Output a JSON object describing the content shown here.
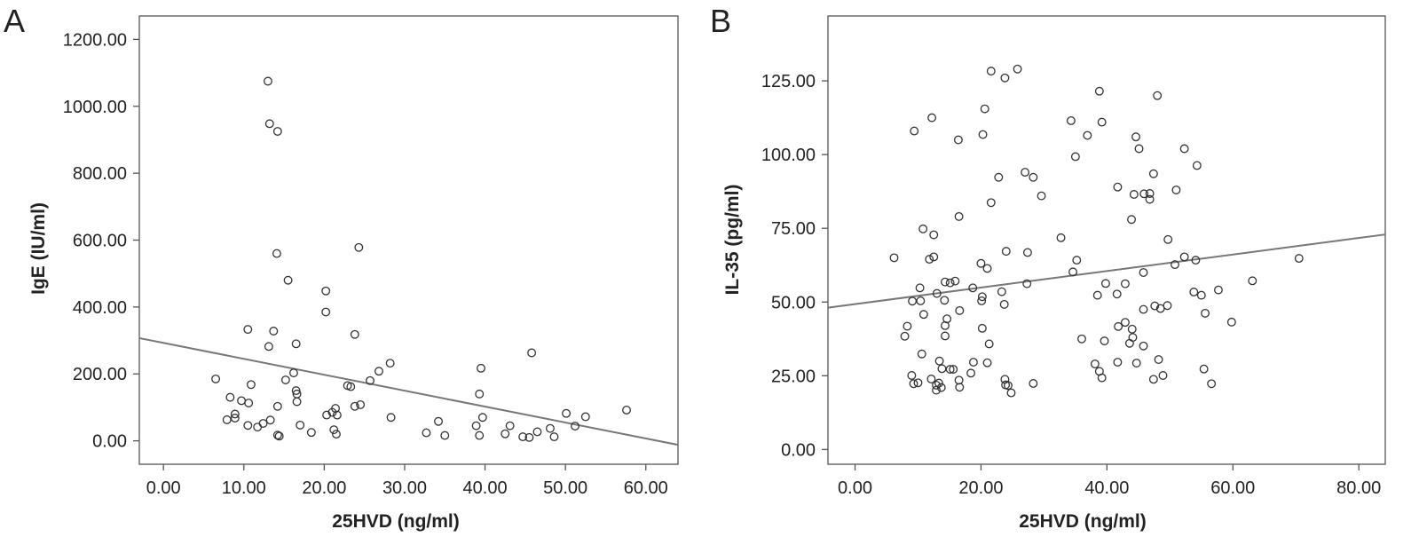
{
  "chart_data": [
    {
      "type": "scatter",
      "panel_label": "A",
      "xlabel": "25HVD (ng/ml)",
      "ylabel": "IgE (IU/ml)",
      "xlim": [
        -3,
        64
      ],
      "ylim": [
        -70,
        1270
      ],
      "x_ticks": [
        "0.00",
        "10.00",
        "20.00",
        "30.00",
        "40.00",
        "50.00",
        "60.00"
      ],
      "y_ticks": [
        "0.00",
        "200.00",
        "400.00",
        "600.00",
        "800.00",
        "1000.00",
        "1200.00"
      ],
      "grid": false,
      "marker": "open-circle",
      "fit_line": {
        "x": [
          -3,
          64
        ],
        "y": [
          307,
          -12
        ]
      },
      "points": [
        [
          13.0,
          1075
        ],
        [
          13.2,
          948
        ],
        [
          14.2,
          925
        ],
        [
          24.3,
          578
        ],
        [
          14.1,
          560
        ],
        [
          15.5,
          480
        ],
        [
          20.2,
          448
        ],
        [
          20.2,
          385
        ],
        [
          10.5,
          333
        ],
        [
          13.7,
          328
        ],
        [
          23.8,
          318
        ],
        [
          16.5,
          290
        ],
        [
          13.1,
          282
        ],
        [
          45.8,
          263
        ],
        [
          28.2,
          232
        ],
        [
          39.5,
          217
        ],
        [
          26.8,
          208
        ],
        [
          16.2,
          203
        ],
        [
          6.5,
          185
        ],
        [
          15.2,
          182
        ],
        [
          25.7,
          180
        ],
        [
          10.9,
          168
        ],
        [
          22.9,
          165
        ],
        [
          23.3,
          162
        ],
        [
          16.5,
          150
        ],
        [
          16.6,
          140
        ],
        [
          39.3,
          140
        ],
        [
          8.3,
          130
        ],
        [
          9.7,
          120
        ],
        [
          16.6,
          117
        ],
        [
          10.6,
          113
        ],
        [
          24.5,
          108
        ],
        [
          14.2,
          103
        ],
        [
          23.8,
          103
        ],
        [
          21.4,
          97
        ],
        [
          57.6,
          92
        ],
        [
          21.0,
          85
        ],
        [
          50.1,
          82
        ],
        [
          8.9,
          80
        ],
        [
          20.3,
          77
        ],
        [
          21.6,
          77
        ],
        [
          52.5,
          72
        ],
        [
          28.3,
          70
        ],
        [
          39.7,
          70
        ],
        [
          8.9,
          68
        ],
        [
          7.9,
          63
        ],
        [
          13.3,
          62
        ],
        [
          34.2,
          58
        ],
        [
          12.4,
          52
        ],
        [
          17.0,
          47
        ],
        [
          10.5,
          46
        ],
        [
          38.9,
          45
        ],
        [
          43.1,
          45
        ],
        [
          51.2,
          44
        ],
        [
          11.7,
          41
        ],
        [
          48.1,
          37
        ],
        [
          21.2,
          33
        ],
        [
          46.5,
          27
        ],
        [
          18.4,
          25
        ],
        [
          32.7,
          24
        ],
        [
          42.5,
          21
        ],
        [
          21.5,
          20
        ],
        [
          14.2,
          17
        ],
        [
          35.0,
          16
        ],
        [
          39.3,
          16
        ],
        [
          14.4,
          14
        ],
        [
          48.6,
          12
        ],
        [
          44.7,
          12
        ],
        [
          45.5,
          10
        ]
      ]
    },
    {
      "type": "scatter",
      "panel_label": "B",
      "xlabel": "25HVD (ng/ml)",
      "ylabel": "IL-35 (pg/ml)",
      "xlim": [
        -4.3,
        84.2
      ],
      "ylim": [
        -5,
        147
      ],
      "x_ticks": [
        "0.00",
        "20.00",
        "40.00",
        "60.00",
        "80.00"
      ],
      "y_ticks": [
        "0.00",
        "25.00",
        "50.00",
        "75.00",
        "100.00",
        "125.00"
      ],
      "grid": false,
      "marker": "open-circle",
      "fit_line": {
        "x": [
          -4.3,
          84.2
        ],
        "y": [
          48.1,
          72.9
        ]
      },
      "points": [
        [
          25.8,
          129
        ],
        [
          21.6,
          128.3
        ],
        [
          23.8,
          126
        ],
        [
          38.8,
          121.5
        ],
        [
          48.0,
          120
        ],
        [
          20.6,
          115.5
        ],
        [
          12.2,
          112.5
        ],
        [
          34.3,
          111.5
        ],
        [
          39.2,
          111
        ],
        [
          9.4,
          108
        ],
        [
          36.9,
          106.5
        ],
        [
          20.3,
          106.8
        ],
        [
          44.6,
          106
        ],
        [
          16.4,
          105
        ],
        [
          52.3,
          102
        ],
        [
          45.1,
          102
        ],
        [
          35.0,
          99.3
        ],
        [
          54.3,
          96.3
        ],
        [
          27.0,
          94
        ],
        [
          47.4,
          93.5
        ],
        [
          28.3,
          92.3
        ],
        [
          22.8,
          92.3
        ],
        [
          41.7,
          89
        ],
        [
          51.0,
          88
        ],
        [
          44.3,
          86.5
        ],
        [
          46.8,
          86.8
        ],
        [
          45.9,
          86.7
        ],
        [
          29.6,
          86
        ],
        [
          46.8,
          84.8
        ],
        [
          21.6,
          83.7
        ],
        [
          16.5,
          79
        ],
        [
          43.9,
          78
        ],
        [
          10.8,
          74.8
        ],
        [
          12.5,
          72.8
        ],
        [
          49.7,
          71.2
        ],
        [
          32.7,
          71.8
        ],
        [
          24.0,
          67.2
        ],
        [
          27.4,
          66.8
        ],
        [
          6.2,
          65
        ],
        [
          12.5,
          65.3
        ],
        [
          52.3,
          65.3
        ],
        [
          70.5,
          64.8
        ],
        [
          11.8,
          64.5
        ],
        [
          35.2,
          64.2
        ],
        [
          54.1,
          64.2
        ],
        [
          50.8,
          62.7
        ],
        [
          20.0,
          63.1
        ],
        [
          21.0,
          61.4
        ],
        [
          34.6,
          60.2
        ],
        [
          45.8,
          60
        ],
        [
          63.1,
          57.2
        ],
        [
          15.9,
          57.1
        ],
        [
          14.3,
          56.8
        ],
        [
          15.1,
          56.5
        ],
        [
          27.3,
          56.2
        ],
        [
          39.8,
          56.3
        ],
        [
          42.9,
          56.2
        ],
        [
          10.3,
          54.8
        ],
        [
          18.7,
          54.8
        ],
        [
          57.7,
          54.1
        ],
        [
          53.8,
          53.4
        ],
        [
          23.3,
          53.5
        ],
        [
          13.0,
          52.9
        ],
        [
          38.5,
          52.3
        ],
        [
          41.6,
          52.7
        ],
        [
          55.0,
          52.3
        ],
        [
          20.2,
          51.8
        ],
        [
          20.1,
          50.4
        ],
        [
          9.1,
          50.3
        ],
        [
          10.4,
          50.4
        ],
        [
          14.2,
          50.6
        ],
        [
          23.7,
          49.2
        ],
        [
          49.6,
          48.8
        ],
        [
          47.6,
          48.7
        ],
        [
          48.5,
          47.8
        ],
        [
          45.8,
          47.5
        ],
        [
          16.6,
          47.1
        ],
        [
          55.6,
          46.2
        ],
        [
          10.9,
          45.8
        ],
        [
          14.6,
          44.3
        ],
        [
          59.8,
          43.2
        ],
        [
          42.9,
          43.1
        ],
        [
          41.8,
          41.7
        ],
        [
          8.3,
          41.8
        ],
        [
          20.2,
          41.1
        ],
        [
          44.0,
          40.8
        ],
        [
          14.3,
          42.0
        ],
        [
          14.3,
          38.5
        ],
        [
          7.9,
          38.4
        ],
        [
          36.0,
          37.5
        ],
        [
          44.1,
          38.0
        ],
        [
          39.6,
          36.8
        ],
        [
          43.6,
          36.0
        ],
        [
          21.3,
          35.8
        ],
        [
          45.8,
          35.1
        ],
        [
          10.6,
          32.4
        ],
        [
          48.2,
          30.5
        ],
        [
          13.4,
          30.0
        ],
        [
          21.0,
          29.4
        ],
        [
          18.8,
          29.6
        ],
        [
          38.1,
          29.0
        ],
        [
          41.7,
          29.6
        ],
        [
          44.7,
          29.3
        ],
        [
          13.8,
          27.4
        ],
        [
          15.6,
          27.2
        ],
        [
          15.1,
          27.2
        ],
        [
          55.4,
          27.3
        ],
        [
          38.8,
          26.5
        ],
        [
          18.4,
          25.9
        ],
        [
          9.0,
          25.1
        ],
        [
          48.9,
          25.1
        ],
        [
          39.2,
          24.3
        ],
        [
          47.4,
          23.8
        ],
        [
          12.1,
          23.9
        ],
        [
          23.8,
          23.8
        ],
        [
          16.5,
          23.5
        ],
        [
          10.0,
          22.6
        ],
        [
          13.3,
          22.5
        ],
        [
          28.3,
          22.4
        ],
        [
          56.6,
          22.3
        ],
        [
          9.3,
          22.3
        ],
        [
          12.9,
          21.8
        ],
        [
          24.3,
          21.7
        ],
        [
          23.9,
          21.9
        ],
        [
          13.7,
          21.0
        ],
        [
          16.6,
          21.1
        ],
        [
          12.9,
          20.1
        ],
        [
          24.8,
          19.2
        ]
      ]
    }
  ]
}
